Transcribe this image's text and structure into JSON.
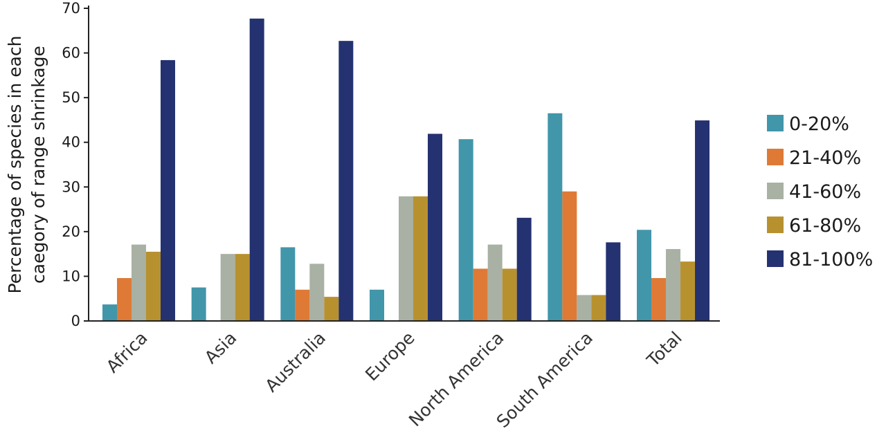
{
  "chart_data": {
    "type": "bar",
    "title": "",
    "xlabel": "",
    "ylabel": "Percentage of species in each caegory of range shrinkage",
    "ylabel_lines": [
      "Percentage of species in each",
      "caegory of range shrinkage"
    ],
    "ylim": [
      0,
      70
    ],
    "yticks": [
      0,
      10,
      20,
      30,
      40,
      50,
      60,
      70
    ],
    "grid": false,
    "legend_position": "right",
    "categories": [
      "Africa",
      "Asia",
      "Australia",
      "Europe",
      "North America",
      "South America",
      "Total"
    ],
    "series": [
      {
        "name": "0-20%",
        "color": "#4196aa",
        "values": [
          3.7,
          7.5,
          16.5,
          7.0,
          40.7,
          46.5,
          20.4
        ]
      },
      {
        "name": "21-40%",
        "color": "#de7a36",
        "values": [
          9.6,
          0,
          7.0,
          0,
          11.7,
          29.0,
          9.6
        ]
      },
      {
        "name": "41-60%",
        "color": "#a8b1a3",
        "values": [
          17.1,
          15.0,
          12.8,
          27.9,
          17.1,
          5.8,
          16.1
        ]
      },
      {
        "name": "61-80%",
        "color": "#b8912f",
        "values": [
          15.5,
          15.0,
          5.4,
          27.9,
          11.7,
          5.8,
          13.3
        ]
      },
      {
        "name": "81-100%",
        "color": "#243271",
        "values": [
          58.4,
          67.7,
          62.7,
          41.9,
          23.1,
          17.6,
          44.9
        ]
      }
    ]
  }
}
